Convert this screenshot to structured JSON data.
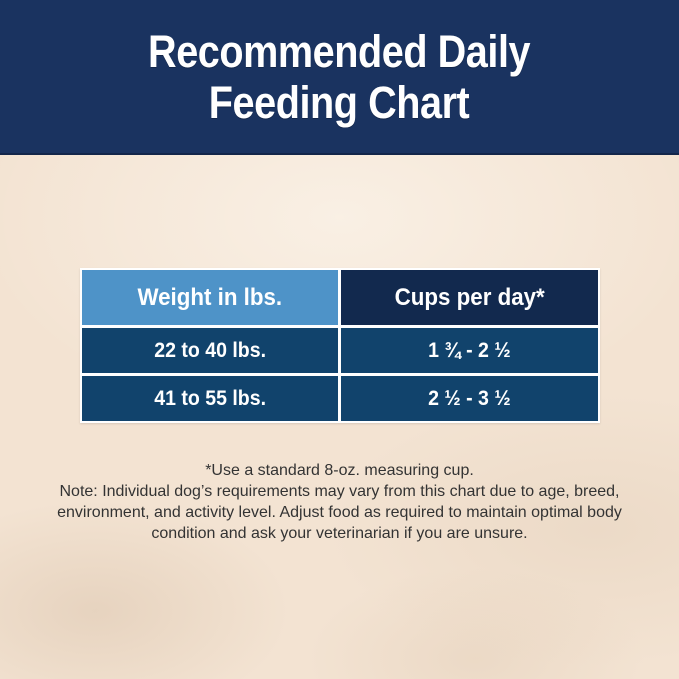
{
  "banner": {
    "title_line1": "Recommended Daily",
    "title_line2": "Feeding Chart",
    "bg_color": "#1a3360",
    "text_color": "#ffffff"
  },
  "table": {
    "columns": [
      {
        "label": "Weight in lbs.",
        "header_bg": "#4e93c8"
      },
      {
        "label": "Cups per day*",
        "header_bg": "#12294e"
      }
    ],
    "rows": [
      {
        "weight": "22 to 40 lbs.",
        "cups": "1 ¾ - 2 ½"
      },
      {
        "weight": "41 to 55 lbs.",
        "cups": "2 ½ - 3 ½"
      }
    ],
    "body_bg": "#11436c",
    "divider_color": "#ffffff"
  },
  "notes": {
    "measuring_cup_note": "*Use a standard 8-oz. measuring cup.",
    "disclaimer": "Note: Individual dog’s requirements may vary from this chart due to age, breed, environment, and activity level. Adjust food as required to maintain optimal body condition and ask your veterinarian if you are unsure."
  },
  "colors": {
    "background": "#f3e3d2",
    "note_text": "#333333"
  },
  "chart_data": {
    "type": "table",
    "title": "Recommended Daily Feeding Chart",
    "columns": [
      "Weight in lbs.",
      "Cups per day*"
    ],
    "rows": [
      [
        "22 to 40 lbs.",
        "1 ¾ - 2 ½"
      ],
      [
        "41 to 55 lbs.",
        "2 ½ - 3 ½"
      ]
    ],
    "footnote": "*Use a standard 8-oz. measuring cup.",
    "note": "Note: Individual dog’s requirements may vary from this chart due to age, breed, environment, and activity level. Adjust food as required to maintain optimal body condition and ask your veterinarian if you are unsure."
  }
}
